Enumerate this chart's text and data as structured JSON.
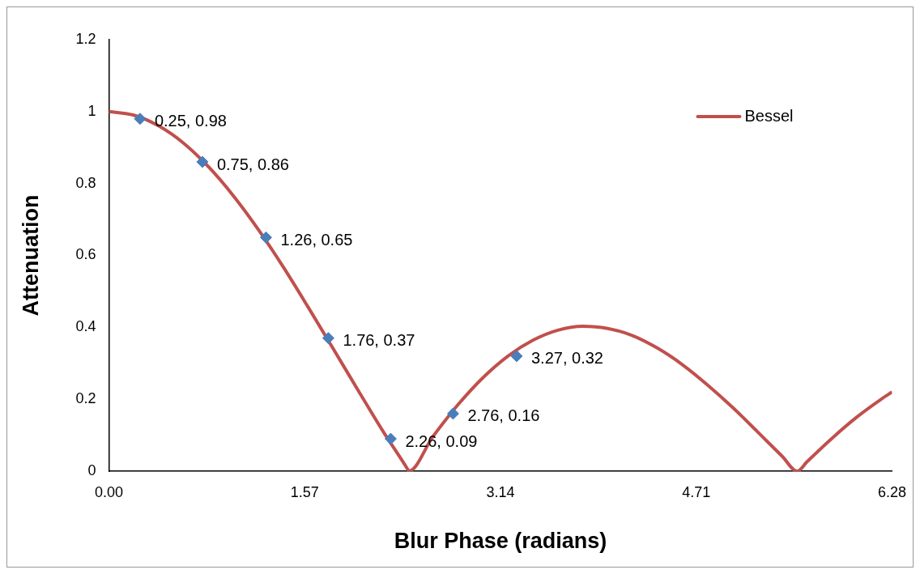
{
  "chart_data": {
    "type": "line",
    "xlabel": "Blur Phase (radians)",
    "ylabel": "Attenuation",
    "xlim": [
      0,
      6.28
    ],
    "xticks": [
      {
        "value": 0,
        "label": "0.00"
      },
      1.57,
      3.14,
      4.71,
      6.28
    ],
    "ylim": [
      0,
      1.2
    ],
    "yticks": [
      0,
      0.2,
      0.4,
      0.6,
      0.8,
      1,
      1.2
    ],
    "grid": false,
    "legend": "top right",
    "marker": "none",
    "line_style": "solid",
    "series": [
      {
        "name": "Bessel",
        "type": "line",
        "color": "#c0504d",
        "x": [
          0,
          0.2,
          0.4,
          0.6,
          0.8,
          1.0,
          1.2,
          1.4,
          1.6,
          1.8,
          2.0,
          2.2,
          2.4,
          2.405,
          2.6,
          2.8,
          3.0,
          3.2,
          3.4,
          3.6,
          3.8,
          4.0,
          4.2,
          4.4,
          4.6,
          4.8,
          5.0,
          5.2,
          5.4,
          5.52,
          5.6,
          5.8,
          6.0,
          6.2,
          6.28
        ],
        "values": [
          1,
          0.99,
          0.96,
          0.912,
          0.846,
          0.765,
          0.671,
          0.567,
          0.455,
          0.34,
          0.224,
          0.11,
          0.003,
          0,
          0.097,
          0.185,
          0.26,
          0.32,
          0.364,
          0.392,
          0.403,
          0.397,
          0.377,
          0.342,
          0.296,
          0.24,
          0.178,
          0.11,
          0.041,
          0,
          0.027,
          0.092,
          0.151,
          0.202,
          0.22
        ]
      },
      {
        "type": "scatter",
        "color": "#4a7ebb",
        "marker": "diamond",
        "x": [
          0.25,
          0.75,
          1.26,
          1.76,
          2.26,
          2.76,
          3.27
        ],
        "values": [
          0.98,
          0.86,
          0.65,
          0.37,
          0.09,
          0.16,
          0.32
        ],
        "value_labels": [
          "0.25, 0.98",
          "0.75, 0.86",
          "1.26, 0.65",
          "1.76, 0.37",
          "2.26, 0.09",
          "2.76, 0.16",
          "3.27, 0.32"
        ]
      }
    ]
  }
}
